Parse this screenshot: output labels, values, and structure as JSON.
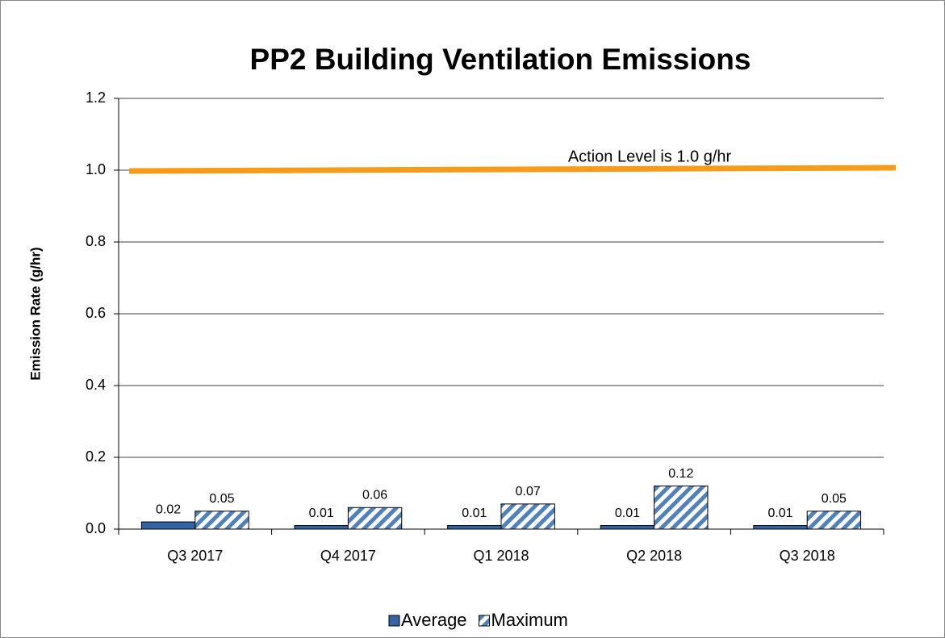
{
  "chart_data": {
    "type": "bar",
    "title": "PP2 Building Ventilation Emissions",
    "y_label": "Emission Rate (g/hr)",
    "categories": [
      "Q3 2017",
      "Q4 2017",
      "Q1 2018",
      "Q2 2018",
      "Q3 2018"
    ],
    "series": [
      {
        "name": "Average",
        "color": "#3464a4",
        "pattern": "solid",
        "values": [
          0.02,
          0.01,
          0.01,
          0.01,
          0.01
        ]
      },
      {
        "name": "Maximum",
        "color": "#4f81bd",
        "pattern": "hatch",
        "values": [
          0.05,
          0.06,
          0.07,
          0.12,
          0.05
        ]
      }
    ],
    "ylim": [
      0,
      1.2
    ],
    "yticks": [
      {
        "value": 0,
        "label": "0.0"
      },
      0.2,
      0.4,
      0.6,
      0.8,
      {
        "value": 1,
        "label": "1.0"
      },
      1.2
    ],
    "grid": true,
    "action_level": {
      "value": 1.0,
      "label": "Action Level is 1.0 g/hr",
      "color": "#f59c1a"
    },
    "legend": "bottom"
  }
}
